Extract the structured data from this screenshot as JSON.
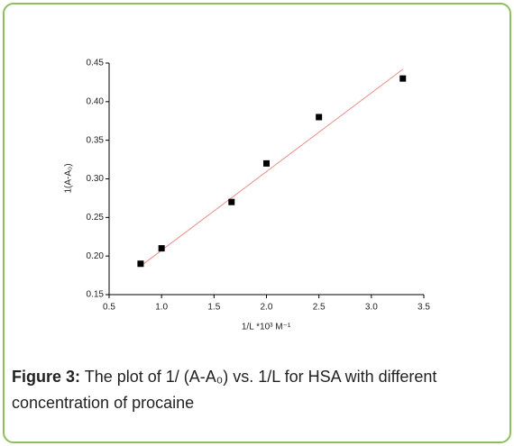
{
  "chart_data": {
    "type": "scatter",
    "x_label": "1/L *10³ M⁻¹",
    "y_label": "1(A-A₀)",
    "x": [
      0.8,
      1.0,
      1.667,
      2.0,
      2.5,
      3.3
    ],
    "values": [
      0.19,
      0.21,
      0.27,
      0.32,
      0.38,
      0.43
    ],
    "color": "#000000",
    "fit_line": {
      "x": [
        0.8,
        3.3
      ],
      "values": [
        0.187,
        0.442
      ],
      "color": "#f08a8a"
    },
    "xlim": [
      0.5,
      3.5
    ],
    "xticks": [
      {
        "value": 0.5,
        "label": "0.5"
      },
      {
        "value": 1,
        "label": "1.0"
      },
      {
        "value": 1.5,
        "label": "1.5"
      },
      {
        "value": 2,
        "label": "2.0"
      },
      {
        "value": 2.5,
        "label": "2.5"
      },
      {
        "value": 3,
        "label": "3.0"
      },
      {
        "value": 3.5,
        "label": "3.5"
      }
    ],
    "ylim": [
      0.15,
      0.45
    ],
    "yticks": [
      0.15,
      {
        "value": 0.2,
        "label": "0.20"
      },
      0.25,
      {
        "value": 0.3,
        "label": "0.30"
      },
      0.35,
      {
        "value": 0.4,
        "label": "0.40"
      },
      0.45
    ],
    "caption": {
      "label": "Figure 3:",
      "text": "The plot of 1/ (A-A₀) vs. 1/L for HSA with different concentration of procaine"
    }
  }
}
